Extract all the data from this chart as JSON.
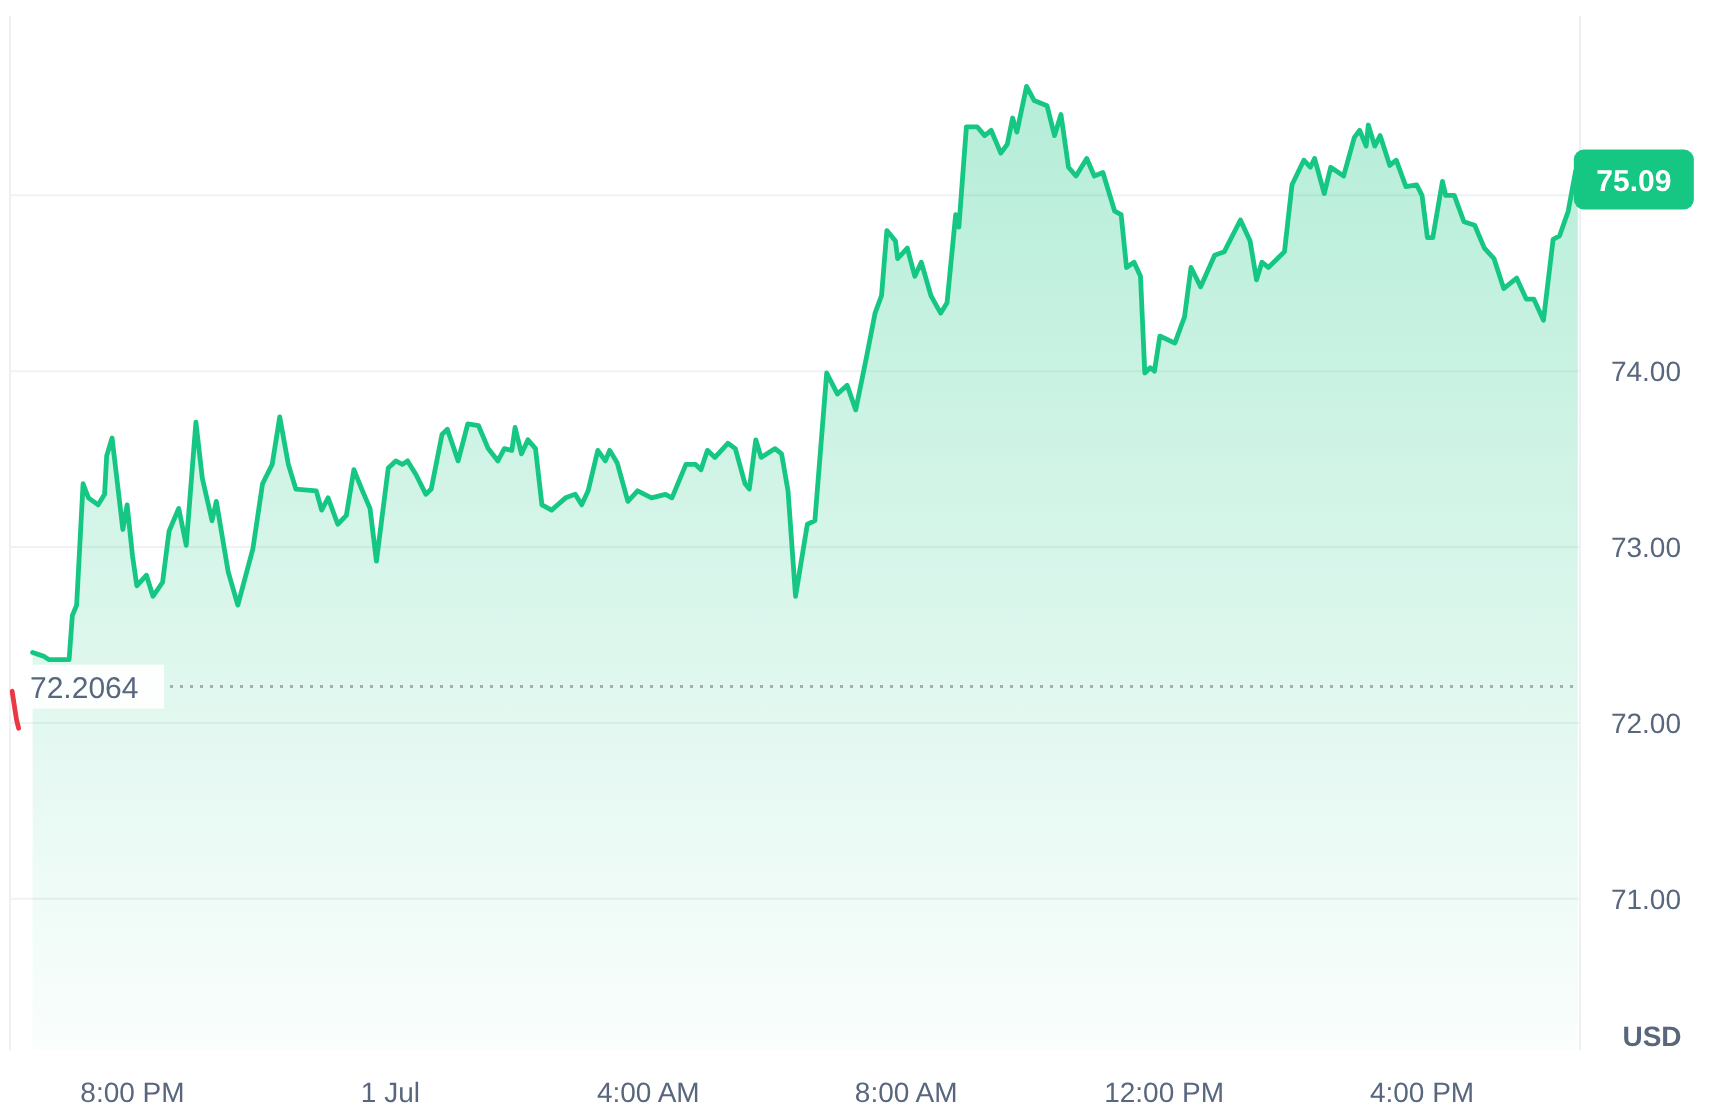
{
  "chart_data": {
    "type": "area",
    "ylabel": "USD",
    "xlim": [
      "--06-30T18:06",
      "--07-01T18:27"
    ],
    "ylim": [
      70.14,
      76.02
    ],
    "xticks": [
      {
        "value": "--06-30T20:00",
        "label": "8:00 PM"
      },
      {
        "value": "--07-01T00:00",
        "label": "1 Jul"
      },
      {
        "value": "--07-01T04:00",
        "label": "4:00 AM"
      },
      {
        "value": "--07-01T08:00",
        "label": "8:00 AM"
      },
      {
        "value": "--07-01T12:00",
        "label": "12:00 PM"
      },
      {
        "value": "--07-01T16:00",
        "label": "4:00 PM"
      }
    ],
    "yticks": [
      {
        "value": 71,
        "label": "71.00"
      },
      {
        "value": 72,
        "label": "72.00"
      },
      {
        "value": 73,
        "label": "73.00"
      },
      {
        "value": 74,
        "label": "74.00"
      },
      {
        "value": 75,
        "label": null
      }
    ],
    "grid": "y",
    "ref_lines": [
      {
        "axis": "y",
        "value": 72.2064,
        "label": "72.2064",
        "line_style": "dotted",
        "color": "#a6abb5"
      }
    ],
    "annotations": [
      {
        "text": "75.09",
        "x": "--07-01T18:25",
        "y": 75.09
      }
    ],
    "series": [
      {
        "type": "line",
        "color": "#ea3943",
        "x": [
          "--06-30T18:08",
          "--06-30T18:12",
          "--06-30T18:14"
        ],
        "values": [
          72.18,
          72.02,
          71.97
        ]
      },
      {
        "color": "#16c784",
        "x": [
          "--06-30T18:27",
          "--06-30T18:37",
          "--06-30T18:42",
          "--06-30T19:01",
          "--06-30T19:04",
          "--06-30T19:08",
          "--06-30T19:14",
          "--06-30T19:19",
          "--06-30T19:28",
          "--06-30T19:34",
          "--06-30T19:36",
          "--06-30T19:41",
          "--06-30T19:51",
          "--06-30T19:55",
          "--06-30T20:00",
          "--06-30T20:04",
          "--06-30T20:13",
          "--06-30T20:19",
          "--06-30T20:28",
          "--06-30T20:34",
          "--06-30T20:43",
          "--06-30T20:50",
          "--06-30T20:59",
          "--06-30T21:05",
          "--06-30T21:14",
          "--06-30T21:18",
          "--06-30T21:29",
          "--06-30T21:38",
          "--06-30T21:52",
          "--06-30T22:01",
          "--06-30T22:10",
          "--06-30T22:17",
          "--06-30T22:25",
          "--06-30T22:32",
          "--06-30T22:51",
          "--06-30T22:56",
          "--06-30T23:02",
          "--06-30T23:11",
          "--06-30T23:19",
          "--06-30T23:26",
          "--06-30T23:34",
          "--06-30T23:41",
          "--06-30T23:47",
          "--06-30T23:58",
          "--07-01T00:05",
          "--07-01T00:11",
          "--07-01T00:16",
          "--07-01T00:24",
          "--07-01T00:33",
          "--07-01T00:38",
          "--07-01T00:48",
          "--07-01T00:53",
          "--07-01T01:03",
          "--07-01T01:12",
          "--07-01T01:22",
          "--07-01T01:31",
          "--07-01T01:40",
          "--07-01T01:46",
          "--07-01T01:53",
          "--07-01T01:56",
          "--07-01T02:02",
          "--07-01T02:08",
          "--07-01T02:15",
          "--07-01T02:21",
          "--07-01T02:30",
          "--07-01T02:43",
          "--07-01T02:52",
          "--07-01T02:58",
          "--07-01T03:04",
          "--07-01T03:13",
          "--07-01T03:20",
          "--07-01T03:24",
          "--07-01T03:31",
          "--07-01T03:41",
          "--07-01T03:50",
          "--07-01T04:03",
          "--07-01T04:16",
          "--07-01T04:22",
          "--07-01T04:35",
          "--07-01T04:44",
          "--07-01T04:49",
          "--07-01T04:55",
          "--07-01T05:02",
          "--07-01T05:14",
          "--07-01T05:21",
          "--07-01T05:30",
          "--07-01T05:34",
          "--07-01T05:40",
          "--07-01T05:45",
          "--07-01T05:58",
          "--07-01T06:04",
          "--07-01T06:10",
          "--07-01T06:17",
          "--07-01T06:28",
          "--07-01T06:35",
          "--07-01T06:46",
          "--07-01T06:56",
          "--07-01T07:05",
          "--07-01T07:13",
          "--07-01T07:23",
          "--07-01T07:31",
          "--07-01T07:37",
          "--07-01T07:42",
          "--07-01T07:50",
          "--07-01T07:52",
          "--07-01T08:01",
          "--07-01T08:08",
          "--07-01T08:14",
          "--07-01T08:23",
          "--07-01T08:32",
          "--07-01T08:38",
          "--07-01T08:46",
          "--07-01T08:49",
          "--07-01T08:56",
          "--07-01T09:06",
          "--07-01T09:13",
          "--07-01T09:19",
          "--07-01T09:28",
          "--07-01T09:34",
          "--07-01T09:39",
          "--07-01T09:43",
          "--07-01T09:52",
          "--07-01T09:59",
          "--07-01T10:11",
          "--07-01T10:18",
          "--07-01T10:24",
          "--07-01T10:31",
          "--07-01T10:38",
          "--07-01T10:48",
          "--07-01T10:55",
          "--07-01T11:03",
          "--07-01T11:14",
          "--07-01T11:20",
          "--07-01T11:25",
          "--07-01T11:32",
          "--07-01T11:38",
          "--07-01T11:42",
          "--07-01T11:47",
          "--07-01T11:51",
          "--07-01T11:56",
          "--07-01T12:10",
          "--07-01T12:19",
          "--07-01T12:25",
          "--07-01T12:34",
          "--07-01T12:47",
          "--07-01T12:56",
          "--07-01T13:11",
          "--07-01T13:20",
          "--07-01T13:26",
          "--07-01T13:31",
          "--07-01T13:37",
          "--07-01T13:52",
          "--07-01T13:59",
          "--07-01T14:10",
          "--07-01T14:16",
          "--07-01T14:20",
          "--07-01T14:29",
          "--07-01T14:35",
          "--07-01T14:47",
          "--07-01T14:57",
          "--07-01T15:02",
          "--07-01T15:08",
          "--07-01T15:10",
          "--07-01T15:16",
          "--07-01T15:21",
          "--07-01T15:30",
          "--07-01T15:36",
          "--07-01T15:45",
          "--07-01T15:55",
          "--07-01T16:00",
          "--07-01T16:05",
          "--07-01T16:10",
          "--07-01T16:19",
          "--07-01T16:22",
          "--07-01T16:30",
          "--07-01T16:39",
          "--07-01T16:49",
          "--07-01T16:58",
          "--07-01T17:07",
          "--07-01T17:16",
          "--07-01T17:28",
          "--07-01T17:37",
          "--07-01T17:44",
          "--07-01T17:53",
          "--07-01T18:02",
          "--07-01T18:08",
          "--07-01T18:16",
          "--07-01T18:23",
          "--07-01T18:25"
        ],
        "values": [
          72.4,
          72.38,
          72.36,
          72.36,
          72.61,
          72.67,
          73.36,
          73.28,
          73.24,
          73.3,
          73.52,
          73.62,
          73.1,
          73.24,
          72.95,
          72.78,
          72.84,
          72.72,
          72.8,
          73.09,
          73.22,
          73.01,
          73.71,
          73.39,
          73.15,
          73.26,
          72.86,
          72.67,
          72.99,
          73.36,
          73.47,
          73.74,
          73.47,
          73.33,
          73.32,
          73.21,
          73.28,
          73.13,
          73.18,
          73.44,
          73.32,
          73.22,
          72.92,
          73.45,
          73.49,
          73.47,
          73.49,
          73.41,
          73.3,
          73.33,
          73.64,
          73.67,
          73.49,
          73.7,
          73.69,
          73.56,
          73.49,
          73.56,
          73.55,
          73.68,
          73.53,
          73.61,
          73.56,
          73.24,
          73.21,
          73.28,
          73.3,
          73.24,
          73.32,
          73.55,
          73.49,
          73.55,
          73.48,
          73.26,
          73.32,
          73.28,
          73.3,
          73.28,
          73.47,
          73.47,
          73.44,
          73.55,
          73.51,
          73.59,
          73.56,
          73.36,
          73.33,
          73.61,
          73.51,
          73.56,
          73.53,
          73.32,
          72.72,
          73.13,
          73.15,
          73.99,
          73.87,
          73.92,
          73.78,
          74.08,
          74.33,
          74.43,
          74.8,
          74.74,
          74.64,
          74.7,
          74.54,
          74.62,
          74.43,
          74.33,
          74.39,
          74.89,
          74.82,
          75.39,
          75.39,
          75.34,
          75.37,
          75.24,
          75.29,
          75.44,
          75.36,
          75.62,
          75.54,
          75.51,
          75.34,
          75.46,
          75.16,
          75.11,
          75.21,
          75.11,
          75.13,
          74.91,
          74.89,
          74.59,
          74.62,
          74.54,
          73.99,
          74.02,
          74.0,
          74.2,
          74.16,
          74.31,
          74.59,
          74.48,
          74.66,
          74.68,
          74.86,
          74.74,
          74.52,
          74.62,
          74.59,
          74.68,
          75.06,
          75.2,
          75.16,
          75.21,
          75.01,
          75.16,
          75.11,
          75.33,
          75.37,
          75.28,
          75.4,
          75.28,
          75.34,
          75.17,
          75.2,
          75.05,
          75.06,
          75.0,
          74.76,
          74.76,
          75.08,
          75.0,
          75.0,
          74.85,
          74.83,
          74.7,
          74.64,
          74.47,
          74.53,
          74.41,
          74.41,
          74.29,
          74.75,
          74.77,
          74.91,
          75.14,
          75.09
        ]
      }
    ]
  }
}
